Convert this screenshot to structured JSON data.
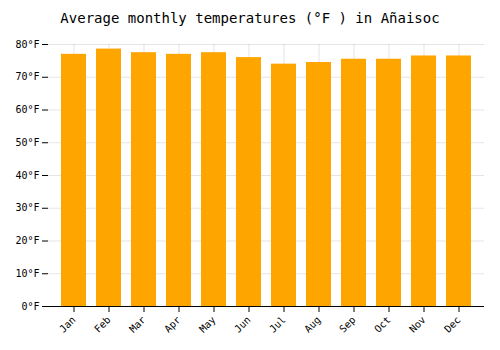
{
  "chart_data": {
    "type": "bar",
    "title": "Average monthly temperatures (°F ) in Añaisoc",
    "categories": [
      "Jan",
      "Feb",
      "Mar",
      "Apr",
      "May",
      "Jun",
      "Jul",
      "Aug",
      "Sep",
      "Oct",
      "Nov",
      "Dec"
    ],
    "values": [
      77.0,
      78.6,
      77.5,
      77.0,
      77.5,
      76.0,
      74.0,
      74.5,
      75.5,
      75.5,
      76.5,
      76.5
    ],
    "color": "#FFA500",
    "ylim": [
      0,
      80
    ],
    "yticks": [
      {
        "value": 0,
        "label": "0°F"
      },
      {
        "value": 10,
        "label": "10°F"
      },
      {
        "value": 20,
        "label": "20°F"
      },
      {
        "value": 30,
        "label": "30°F"
      },
      {
        "value": 40,
        "label": "40°F"
      },
      {
        "value": 50,
        "label": "50°F"
      },
      {
        "value": 60,
        "label": "60°F"
      },
      {
        "value": 70,
        "label": "70°F"
      },
      {
        "value": 80,
        "label": "80°F"
      }
    ],
    "grid": true
  }
}
